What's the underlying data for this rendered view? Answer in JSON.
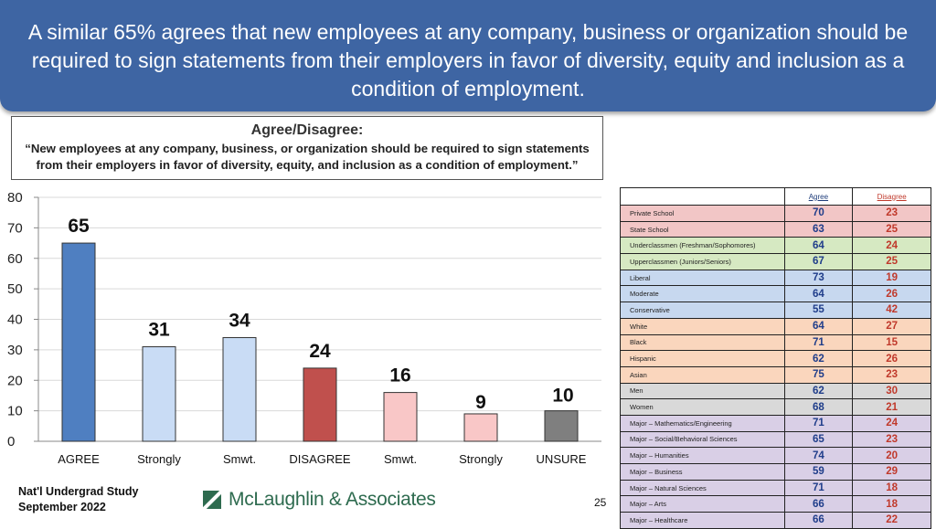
{
  "header": {
    "title": "A similar 65% agrees that new employees at any company, business or organization should be required to sign statements from their employers in favor of diversity, equity and inclusion as a condition of employment."
  },
  "question": {
    "title": "Agree/Disagree:",
    "text": "“New employees at any company, business, or organization should be required to sign statements from their employers in favor of diversity, equity, and inclusion as a condition of employment.”"
  },
  "chart_data": [
    {
      "type": "bar",
      "categories": [
        "AGREE",
        "Strongly",
        "Smwt.",
        "DISAGREE",
        "Smwt.",
        "Strongly",
        "UNSURE"
      ],
      "values": [
        65,
        31,
        34,
        24,
        16,
        9,
        10
      ],
      "ylim": [
        0,
        80
      ],
      "yticks": [
        0,
        10,
        20,
        30,
        40,
        50,
        60,
        70,
        80
      ],
      "grid": true,
      "colors": [
        "#4f7fc1",
        "#c9dcf5",
        "#c9dcf5",
        "#c0504d",
        "#f9c7c7",
        "#f9c7c7",
        "#7f7f7f"
      ]
    },
    {
      "type": "table",
      "columns": [
        "Agree",
        "Disagree"
      ],
      "rows": [
        {
          "label": "Private School",
          "agree": 70,
          "disagree": 23,
          "color": "#f2c6c6"
        },
        {
          "label": "State School",
          "agree": 63,
          "disagree": 25,
          "color": "#f2c6c6"
        },
        {
          "label": "Underclassmen (Freshman/Sophomores)",
          "agree": 64,
          "disagree": 24,
          "color": "#d6e9c2"
        },
        {
          "label": "Upperclassmen (Juniors/Seniors)",
          "agree": 67,
          "disagree": 25,
          "color": "#d6e9c2"
        },
        {
          "label": "Liberal",
          "agree": 73,
          "disagree": 19,
          "color": "#c7d8ef"
        },
        {
          "label": "Moderate",
          "agree": 64,
          "disagree": 26,
          "color": "#c7d8ef"
        },
        {
          "label": "Conservative",
          "agree": 55,
          "disagree": 42,
          "color": "#c7d8ef"
        },
        {
          "label": "White",
          "agree": 64,
          "disagree": 27,
          "color": "#fad6bd"
        },
        {
          "label": "Black",
          "agree": 71,
          "disagree": 15,
          "color": "#fad6bd"
        },
        {
          "label": "Hispanic",
          "agree": 62,
          "disagree": 26,
          "color": "#fad6bd"
        },
        {
          "label": "Asian",
          "agree": 75,
          "disagree": 23,
          "color": "#fad6bd"
        },
        {
          "label": "Men",
          "agree": 62,
          "disagree": 30,
          "color": "#d9d9d9"
        },
        {
          "label": "Women",
          "agree": 68,
          "disagree": 21,
          "color": "#d9d9d9"
        },
        {
          "label": "Major – Mathematics/Engineering",
          "agree": 71,
          "disagree": 24,
          "color": "#d9cfe6"
        },
        {
          "label": "Major – Social/Behavioral Sciences",
          "agree": 65,
          "disagree": 23,
          "color": "#d9cfe6"
        },
        {
          "label": "Major – Humanities",
          "agree": 74,
          "disagree": 20,
          "color": "#d9cfe6"
        },
        {
          "label": "Major – Business",
          "agree": 59,
          "disagree": 29,
          "color": "#d9cfe6"
        },
        {
          "label": "Major – Natural Sciences",
          "agree": 71,
          "disagree": 18,
          "color": "#d9cfe6"
        },
        {
          "label": "Major – Arts",
          "agree": 66,
          "disagree": 18,
          "color": "#d9cfe6"
        },
        {
          "label": "Major – Healthcare",
          "agree": 66,
          "disagree": 22,
          "color": "#d9cfe6"
        }
      ]
    }
  ],
  "footer": {
    "study_line1": "Nat'l Undergrad Study",
    "study_line2": "September 2022",
    "logo_text": "McLaughlin & Associates",
    "page_number": "25"
  }
}
